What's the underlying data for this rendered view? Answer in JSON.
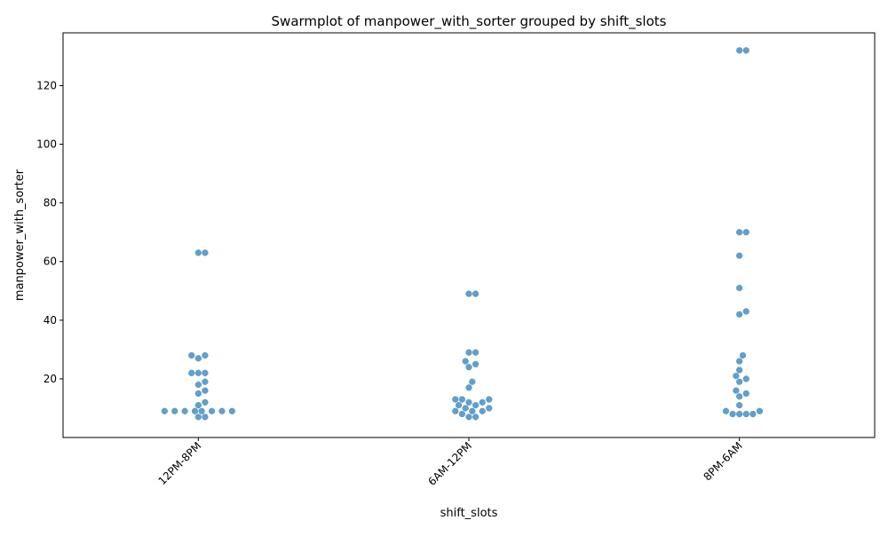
{
  "chart_data": {
    "type": "scatter",
    "subtype": "swarm",
    "title": "Swarmplot of manpower_with_sorter grouped by shift_slots",
    "xlabel": "shift_slots",
    "ylabel": "manpower_with_sorter",
    "categories": [
      "12PM-8PM",
      "6AM-12PM",
      "8PM-6AM"
    ],
    "ylim": [
      0,
      138
    ],
    "yticks": [
      20,
      40,
      60,
      80,
      100,
      120
    ],
    "grid": false,
    "legend": "none",
    "point_color": "#5a9ac7",
    "series": [
      {
        "category": "12PM-8PM",
        "values": [
          63,
          63,
          28,
          28,
          27,
          22,
          22,
          22,
          19,
          18,
          16,
          15,
          12,
          11,
          9,
          9,
          9,
          9,
          9,
          9,
          9,
          9,
          7,
          7
        ]
      },
      {
        "category": "6AM-12PM",
        "values": [
          49,
          49,
          29,
          29,
          26,
          25,
          24,
          19,
          17,
          13,
          13,
          13,
          12,
          12,
          11,
          11,
          10,
          10,
          9,
          9,
          9,
          8,
          7,
          7
        ]
      },
      {
        "category": "8PM-6AM",
        "values": [
          132,
          132,
          70,
          70,
          62,
          51,
          43,
          42,
          28,
          26,
          23,
          21,
          20,
          19,
          16,
          15,
          14,
          11,
          9,
          9,
          8,
          8,
          8,
          8
        ]
      }
    ]
  }
}
